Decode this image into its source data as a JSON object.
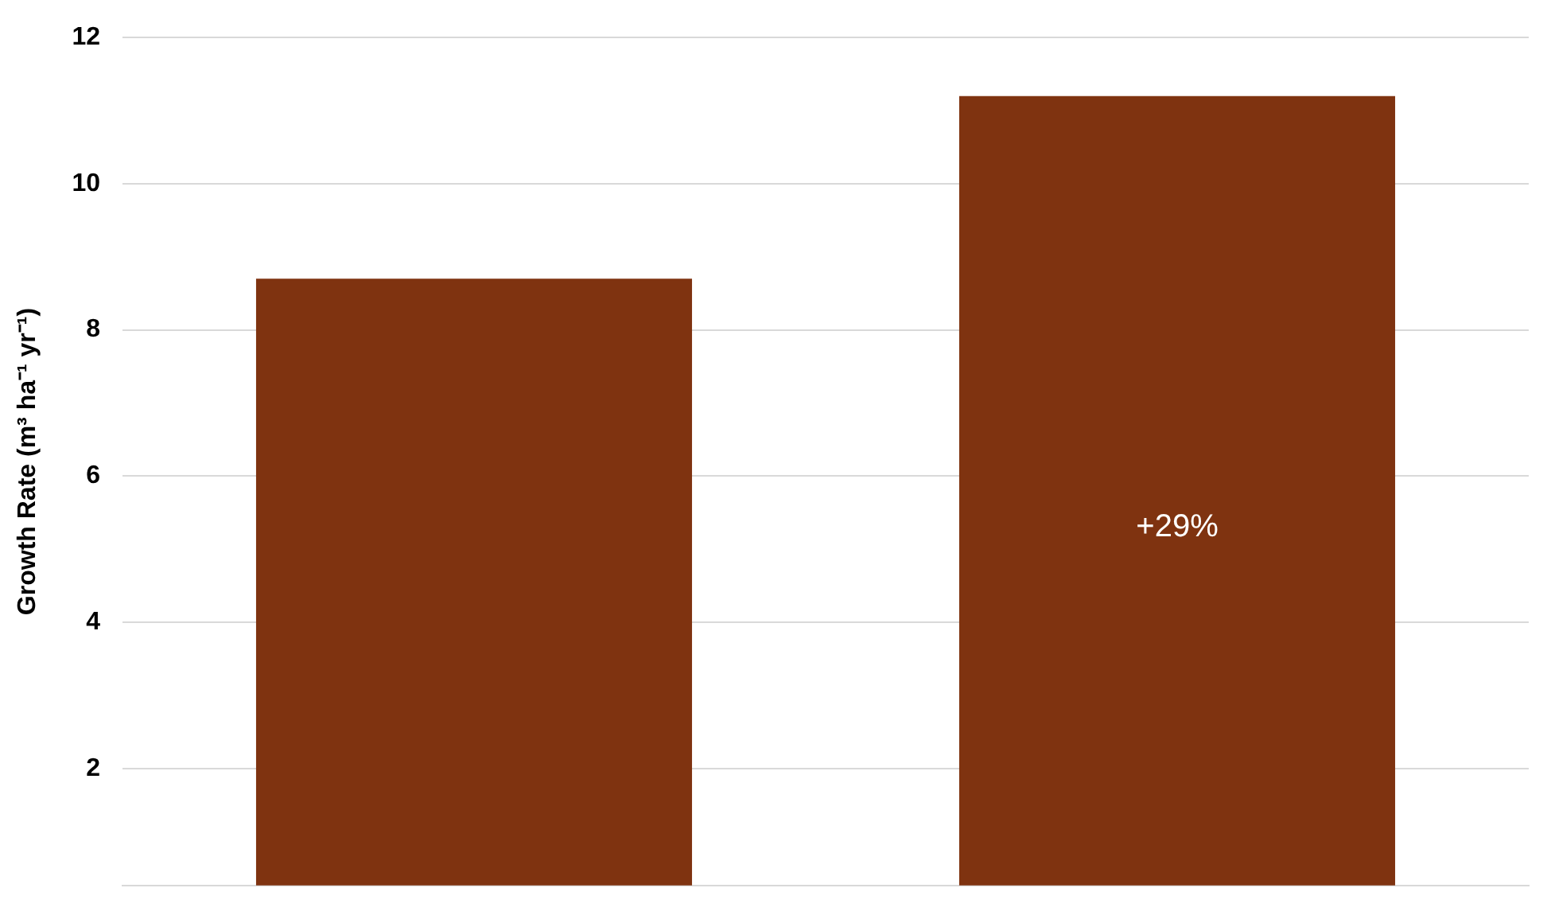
{
  "chart_data": {
    "type": "bar",
    "ylabel": "Growth Rate (m³ ha⁻¹ yr⁻¹)",
    "categories": [
      null,
      null
    ],
    "values": [
      8.7,
      11.2
    ],
    "color": "#7f3310",
    "ylim": [
      0.4,
      12
    ],
    "yticks": [
      2,
      4,
      6,
      8,
      10,
      12
    ],
    "grid": "y",
    "legend": false,
    "annotations": [
      "+29%"
    ]
  }
}
